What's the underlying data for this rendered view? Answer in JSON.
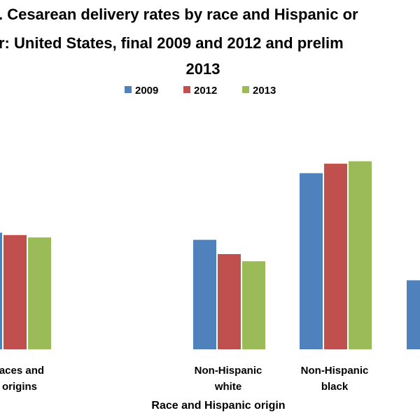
{
  "chart_data": {
    "type": "bar",
    "title_lines": [
      ". Cesarean delivery rates by race and Hispanic or",
      "r: United States, final 2009 and 2012 and prelim",
      "2013"
    ],
    "xlabel": "Race and Hispanic origin",
    "ylabel": "",
    "legend_position": "top",
    "grid": false,
    "categories": [
      {
        "line1": "races and",
        "line2": "origins"
      },
      {
        "line1": "Non-Hispanic",
        "line2": "white"
      },
      {
        "line1": "Non-Hispanic",
        "line2": "black"
      },
      {
        "line1": "",
        "line2": ""
      }
    ],
    "series": [
      {
        "name": "2009",
        "color": "#4f81bd",
        "values": [
          32.9,
          32.6,
          35.4,
          30.9
        ]
      },
      {
        "name": "2012",
        "color": "#c0504d",
        "values": [
          32.8,
          32.0,
          35.8,
          null
        ]
      },
      {
        "name": "2013",
        "color": "#9bbb59",
        "values": [
          32.7,
          31.7,
          35.9,
          null
        ]
      }
    ],
    "ylim": [
      28,
      37
    ]
  }
}
